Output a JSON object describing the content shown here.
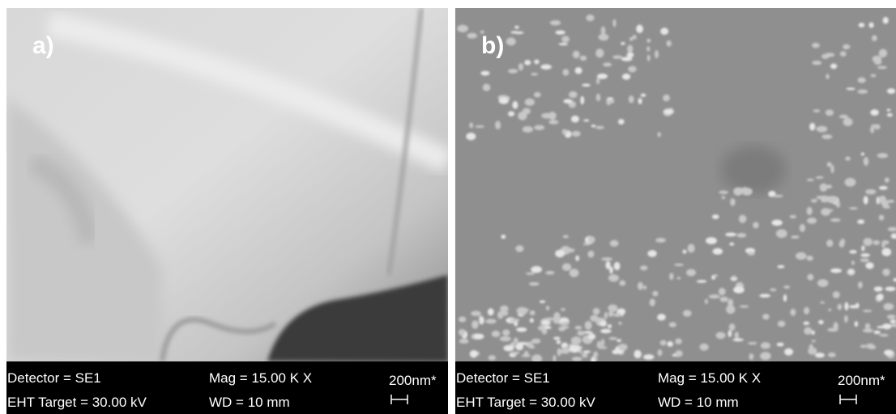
{
  "panels": [
    {
      "label": "a)",
      "detector": "Detector = SE1",
      "mag": "Mag =  15.00 K X",
      "eht": "EHT Target = 30.00 kV",
      "wd": "WD =   10 mm",
      "scale": "200nm*"
    },
    {
      "label": "b)",
      "detector": "Detector = SE1",
      "mag": "Mag =  15.00 K X",
      "eht": "EHT Target = 30.00 kV",
      "wd": "WD =   10 mm",
      "scale": "200nm*"
    }
  ]
}
